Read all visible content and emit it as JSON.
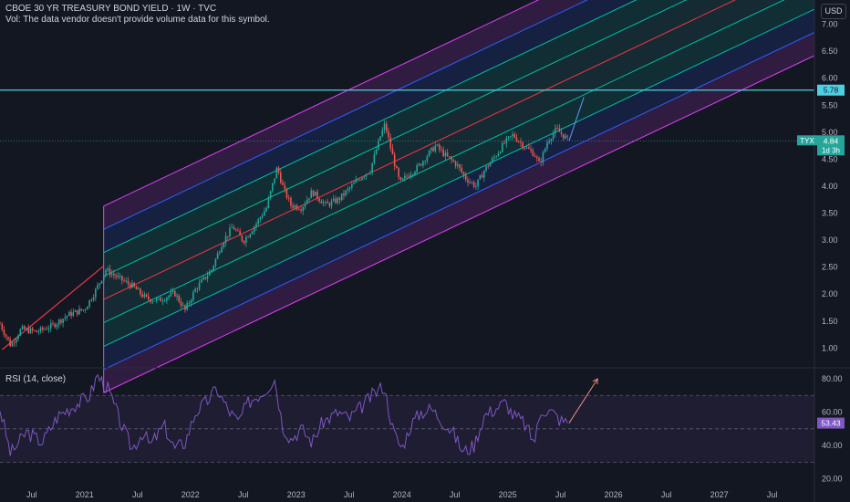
{
  "header": {
    "title": "CBOE 30 YR TREASURY BOND YIELD · 1W · TVC",
    "volume_note": "Vol: The data vendor doesn't provide volume data for this symbol.",
    "currency_button": "USD"
  },
  "rsi_legend": "RSI (14, close)",
  "price_badges": {
    "horizontal_line": "5.78",
    "symbol": "TYX",
    "last_price": "4.84",
    "countdown": "1d 3h",
    "rsi_value": "53.43"
  },
  "colors": {
    "background": "#131722",
    "up": "#26a69a",
    "down": "#ef5350",
    "channel_outer": "#e040fb",
    "channel_mid": "#2962ff",
    "channel_inner": "#00bfa5",
    "channel_median": "#f23645",
    "horizontal_line": "#4dd0e1",
    "rsi_line": "#7e57c2"
  },
  "chart_data": [
    {
      "type": "candlestick",
      "symbol": "TYX",
      "timeframe": "1W",
      "x_axis_labels": [
        "Jul",
        "2021",
        "Jul",
        "2022",
        "Jul",
        "2023",
        "Jul",
        "2024",
        "Jul",
        "2025",
        "Jul",
        "2026",
        "Jul",
        "2027",
        "Jul"
      ],
      "y_axis_labels": [
        "1.00",
        "1.50",
        "2.00",
        "2.50",
        "3.00",
        "3.50",
        "4.00",
        "4.50",
        "5.00",
        "5.50",
        "6.00",
        "6.50",
        "7.00"
      ],
      "ylim": [
        0.65,
        7.45
      ],
      "xlim": [
        2020.2,
        2027.9
      ],
      "path": [
        [
          2020.2,
          1.45
        ],
        [
          2020.25,
          1.25
        ],
        [
          2020.3,
          1.05
        ],
        [
          2020.4,
          1.35
        ],
        [
          2020.55,
          1.3
        ],
        [
          2020.7,
          1.42
        ],
        [
          2020.85,
          1.62
        ],
        [
          2021.0,
          1.72
        ],
        [
          2021.1,
          2.05
        ],
        [
          2021.2,
          2.45
        ],
        [
          2021.32,
          2.3
        ],
        [
          2021.45,
          2.15
        ],
        [
          2021.58,
          1.92
        ],
        [
          2021.7,
          1.88
        ],
        [
          2021.85,
          2.02
        ],
        [
          2021.95,
          1.7
        ],
        [
          2022.05,
          2.1
        ],
        [
          2022.2,
          2.45
        ],
        [
          2022.3,
          2.95
        ],
        [
          2022.4,
          3.25
        ],
        [
          2022.5,
          2.98
        ],
        [
          2022.62,
          3.3
        ],
        [
          2022.72,
          3.6
        ],
        [
          2022.82,
          4.35
        ],
        [
          2022.88,
          3.95
        ],
        [
          2022.95,
          3.65
        ],
        [
          2023.05,
          3.6
        ],
        [
          2023.15,
          3.9
        ],
        [
          2023.28,
          3.65
        ],
        [
          2023.4,
          3.75
        ],
        [
          2023.5,
          3.95
        ],
        [
          2023.6,
          4.15
        ],
        [
          2023.7,
          4.3
        ],
        [
          2023.8,
          4.95
        ],
        [
          2023.84,
          5.15
        ],
        [
          2023.9,
          4.65
        ],
        [
          2023.98,
          4.05
        ],
        [
          2024.05,
          4.2
        ],
        [
          2024.15,
          4.35
        ],
        [
          2024.25,
          4.6
        ],
        [
          2024.32,
          4.75
        ],
        [
          2024.42,
          4.55
        ],
        [
          2024.52,
          4.4
        ],
        [
          2024.6,
          4.15
        ],
        [
          2024.7,
          4.0
        ],
        [
          2024.78,
          4.3
        ],
        [
          2024.88,
          4.55
        ],
        [
          2024.97,
          4.8
        ],
        [
          2025.05,
          4.95
        ],
        [
          2025.15,
          4.75
        ],
        [
          2025.25,
          4.6
        ],
        [
          2025.3,
          4.4
        ],
        [
          2025.38,
          4.85
        ],
        [
          2025.46,
          5.05
        ],
        [
          2025.52,
          4.95
        ],
        [
          2025.58,
          4.84
        ]
      ],
      "pitchfork_channel": {
        "start_date": 2021.18,
        "start_price": 2.48,
        "slope_per_year": 0.93,
        "median_offset_at_start": -0.58,
        "levels": [
          0.43,
          0.87,
          1.3,
          1.73
        ],
        "left_segment": [
          [
            2020.22,
            0.97
          ],
          [
            2021.18,
            2.52
          ]
        ]
      },
      "horizontal_line": 5.78,
      "projection_arrow": [
        [
          2025.58,
          4.84
        ],
        [
          2025.72,
          5.65
        ]
      ],
      "last_value": 4.84
    },
    {
      "type": "line",
      "name": "RSI (14, close)",
      "y_axis_labels": [
        "20.00",
        "40.00",
        "60.00",
        "80.00"
      ],
      "ylim": [
        16,
        86
      ],
      "bands": [
        30,
        50,
        70
      ],
      "path": [
        [
          2020.2,
          62
        ],
        [
          2020.3,
          35
        ],
        [
          2020.45,
          48
        ],
        [
          2020.6,
          42
        ],
        [
          2020.75,
          58
        ],
        [
          2020.9,
          64
        ],
        [
          2021.05,
          70
        ],
        [
          2021.12,
          82
        ],
        [
          2021.22,
          74
        ],
        [
          2021.35,
          52
        ],
        [
          2021.45,
          38
        ],
        [
          2021.55,
          48
        ],
        [
          2021.62,
          40
        ],
        [
          2021.75,
          52
        ],
        [
          2021.85,
          38
        ],
        [
          2021.95,
          42
        ],
        [
          2022.05,
          60
        ],
        [
          2022.15,
          66
        ],
        [
          2022.25,
          74
        ],
        [
          2022.35,
          62
        ],
        [
          2022.45,
          54
        ],
        [
          2022.55,
          66
        ],
        [
          2022.7,
          73
        ],
        [
          2022.8,
          80
        ],
        [
          2022.87,
          52
        ],
        [
          2022.95,
          44
        ],
        [
          2023.05,
          50
        ],
        [
          2023.15,
          42
        ],
        [
          2023.25,
          54
        ],
        [
          2023.4,
          60
        ],
        [
          2023.5,
          56
        ],
        [
          2023.6,
          62
        ],
        [
          2023.72,
          70
        ],
        [
          2023.83,
          76
        ],
        [
          2023.92,
          48
        ],
        [
          2024.0,
          38
        ],
        [
          2024.08,
          52
        ],
        [
          2024.18,
          60
        ],
        [
          2024.28,
          62
        ],
        [
          2024.38,
          55
        ],
        [
          2024.48,
          48
        ],
        [
          2024.58,
          36
        ],
        [
          2024.68,
          40
        ],
        [
          2024.78,
          58
        ],
        [
          2024.88,
          62
        ],
        [
          2024.98,
          66
        ],
        [
          2025.05,
          58
        ],
        [
          2025.15,
          54
        ],
        [
          2025.25,
          42
        ],
        [
          2025.32,
          62
        ],
        [
          2025.42,
          60
        ],
        [
          2025.5,
          55
        ],
        [
          2025.58,
          53.43
        ]
      ],
      "projection_arrow": [
        [
          2025.58,
          53.43
        ],
        [
          2025.85,
          80
        ]
      ],
      "last_value": 53.43
    }
  ]
}
